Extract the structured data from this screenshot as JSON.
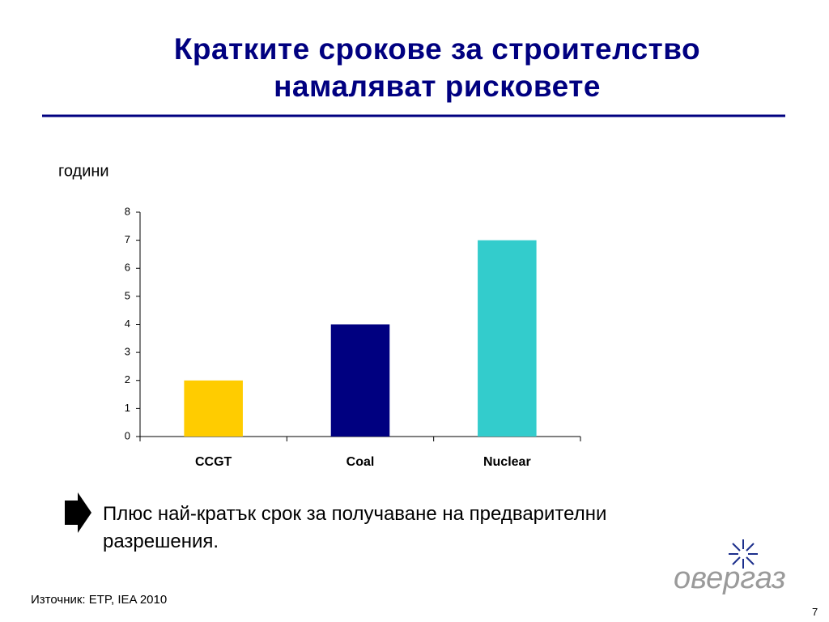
{
  "chart_data": {
    "type": "bar",
    "title": "Кратките срокове за строителство намаляват рисковете",
    "ylabel": "години",
    "categories": [
      "CCGT",
      "Coal",
      "Nuclear"
    ],
    "values": [
      2,
      4,
      7
    ],
    "colors": [
      "#ffcc00",
      "#000080",
      "#33cccc"
    ],
    "ylim": [
      0,
      8
    ],
    "yticks": [
      0,
      1,
      2,
      3,
      4,
      5,
      6,
      7,
      8
    ],
    "grid": false,
    "note": "Плюс най-кратък срок за получаване на предварителни разрешения.",
    "source": "Източник: ETP, IEA 2010",
    "logo": "овергаз",
    "page_number": "7"
  }
}
